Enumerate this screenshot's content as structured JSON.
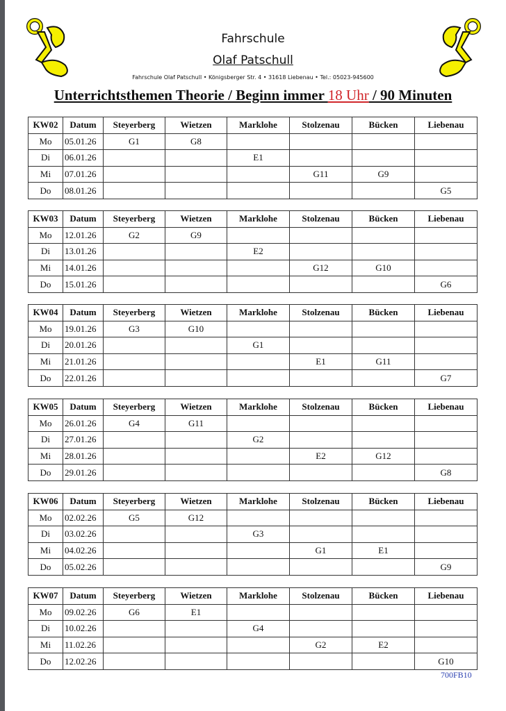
{
  "header": {
    "line1": "Fahrschule",
    "line2": "Olaf Patschull",
    "address": "Fahrschule Olaf Patschull • Königsberger Str. 4  • 31618 Liebenau • Tel.: 05023-945600",
    "title_part1": "Unterrichtsthemen Theorie / Beginn immer ",
    "title_time": "18 Uhr",
    "title_part2": " / 90 Minuten",
    "accent_color": "#d0262a",
    "logo_color": "#f5ef00"
  },
  "columns": [
    "Datum",
    "Steyerberg",
    "Wietzen",
    "Marklohe",
    "Stolzenau",
    "Bücken",
    "Liebenau"
  ],
  "weeks": [
    {
      "kw": "KW02",
      "rows": [
        [
          "Mo",
          "05.01.26",
          "G1",
          "G8",
          "",
          "",
          "",
          ""
        ],
        [
          "Di",
          "06.01.26",
          "",
          "",
          "E1",
          "",
          "",
          ""
        ],
        [
          "Mi",
          "07.01.26",
          "",
          "",
          "",
          "G11",
          "G9",
          ""
        ],
        [
          "Do",
          "08.01.26",
          "",
          "",
          "",
          "",
          "",
          "G5"
        ]
      ]
    },
    {
      "kw": "KW03",
      "rows": [
        [
          "Mo",
          "12.01.26",
          "G2",
          "G9",
          "",
          "",
          "",
          ""
        ],
        [
          "Di",
          "13.01.26",
          "",
          "",
          "E2",
          "",
          "",
          ""
        ],
        [
          "Mi",
          "14.01.26",
          "",
          "",
          "",
          "G12",
          "G10",
          ""
        ],
        [
          "Do",
          "15.01.26",
          "",
          "",
          "",
          "",
          "",
          "G6"
        ]
      ]
    },
    {
      "kw": "KW04",
      "rows": [
        [
          "Mo",
          "19.01.26",
          "G3",
          "G10",
          "",
          "",
          "",
          ""
        ],
        [
          "Di",
          "20.01.26",
          "",
          "",
          "G1",
          "",
          "",
          ""
        ],
        [
          "Mi",
          "21.01.26",
          "",
          "",
          "",
          "E1",
          "G11",
          ""
        ],
        [
          "Do",
          "22.01.26",
          "",
          "",
          "",
          "",
          "",
          "G7"
        ]
      ]
    },
    {
      "kw": "KW05",
      "rows": [
        [
          "Mo",
          "26.01.26",
          "G4",
          "G11",
          "",
          "",
          "",
          ""
        ],
        [
          "Di",
          "27.01.26",
          "",
          "",
          "G2",
          "",
          "",
          ""
        ],
        [
          "Mi",
          "28.01.26",
          "",
          "",
          "",
          "E2",
          "G12",
          ""
        ],
        [
          "Do",
          "29.01.26",
          "",
          "",
          "",
          "",
          "",
          "G8"
        ]
      ]
    },
    {
      "kw": "KW06",
      "rows": [
        [
          "Mo",
          "02.02.26",
          "G5",
          "G12",
          "",
          "",
          "",
          ""
        ],
        [
          "Di",
          "03.02.26",
          "",
          "",
          "G3",
          "",
          "",
          ""
        ],
        [
          "Mi",
          "04.02.26",
          "",
          "",
          "",
          "G1",
          "E1",
          ""
        ],
        [
          "Do",
          "05.02.26",
          "",
          "",
          "",
          "",
          "",
          "G9"
        ]
      ]
    },
    {
      "kw": "KW07",
      "rows": [
        [
          "Mo",
          "09.02.26",
          "G6",
          "E1",
          "",
          "",
          "",
          ""
        ],
        [
          "Di",
          "10.02.26",
          "",
          "",
          "G4",
          "",
          "",
          ""
        ],
        [
          "Mi",
          "11.02.26",
          "",
          "",
          "",
          "G2",
          "E2",
          ""
        ],
        [
          "Do",
          "12.02.26",
          "",
          "",
          "",
          "",
          "",
          "G10"
        ]
      ]
    }
  ],
  "footer": {
    "code": "700FB10",
    "code_color": "#2a3fb0"
  }
}
